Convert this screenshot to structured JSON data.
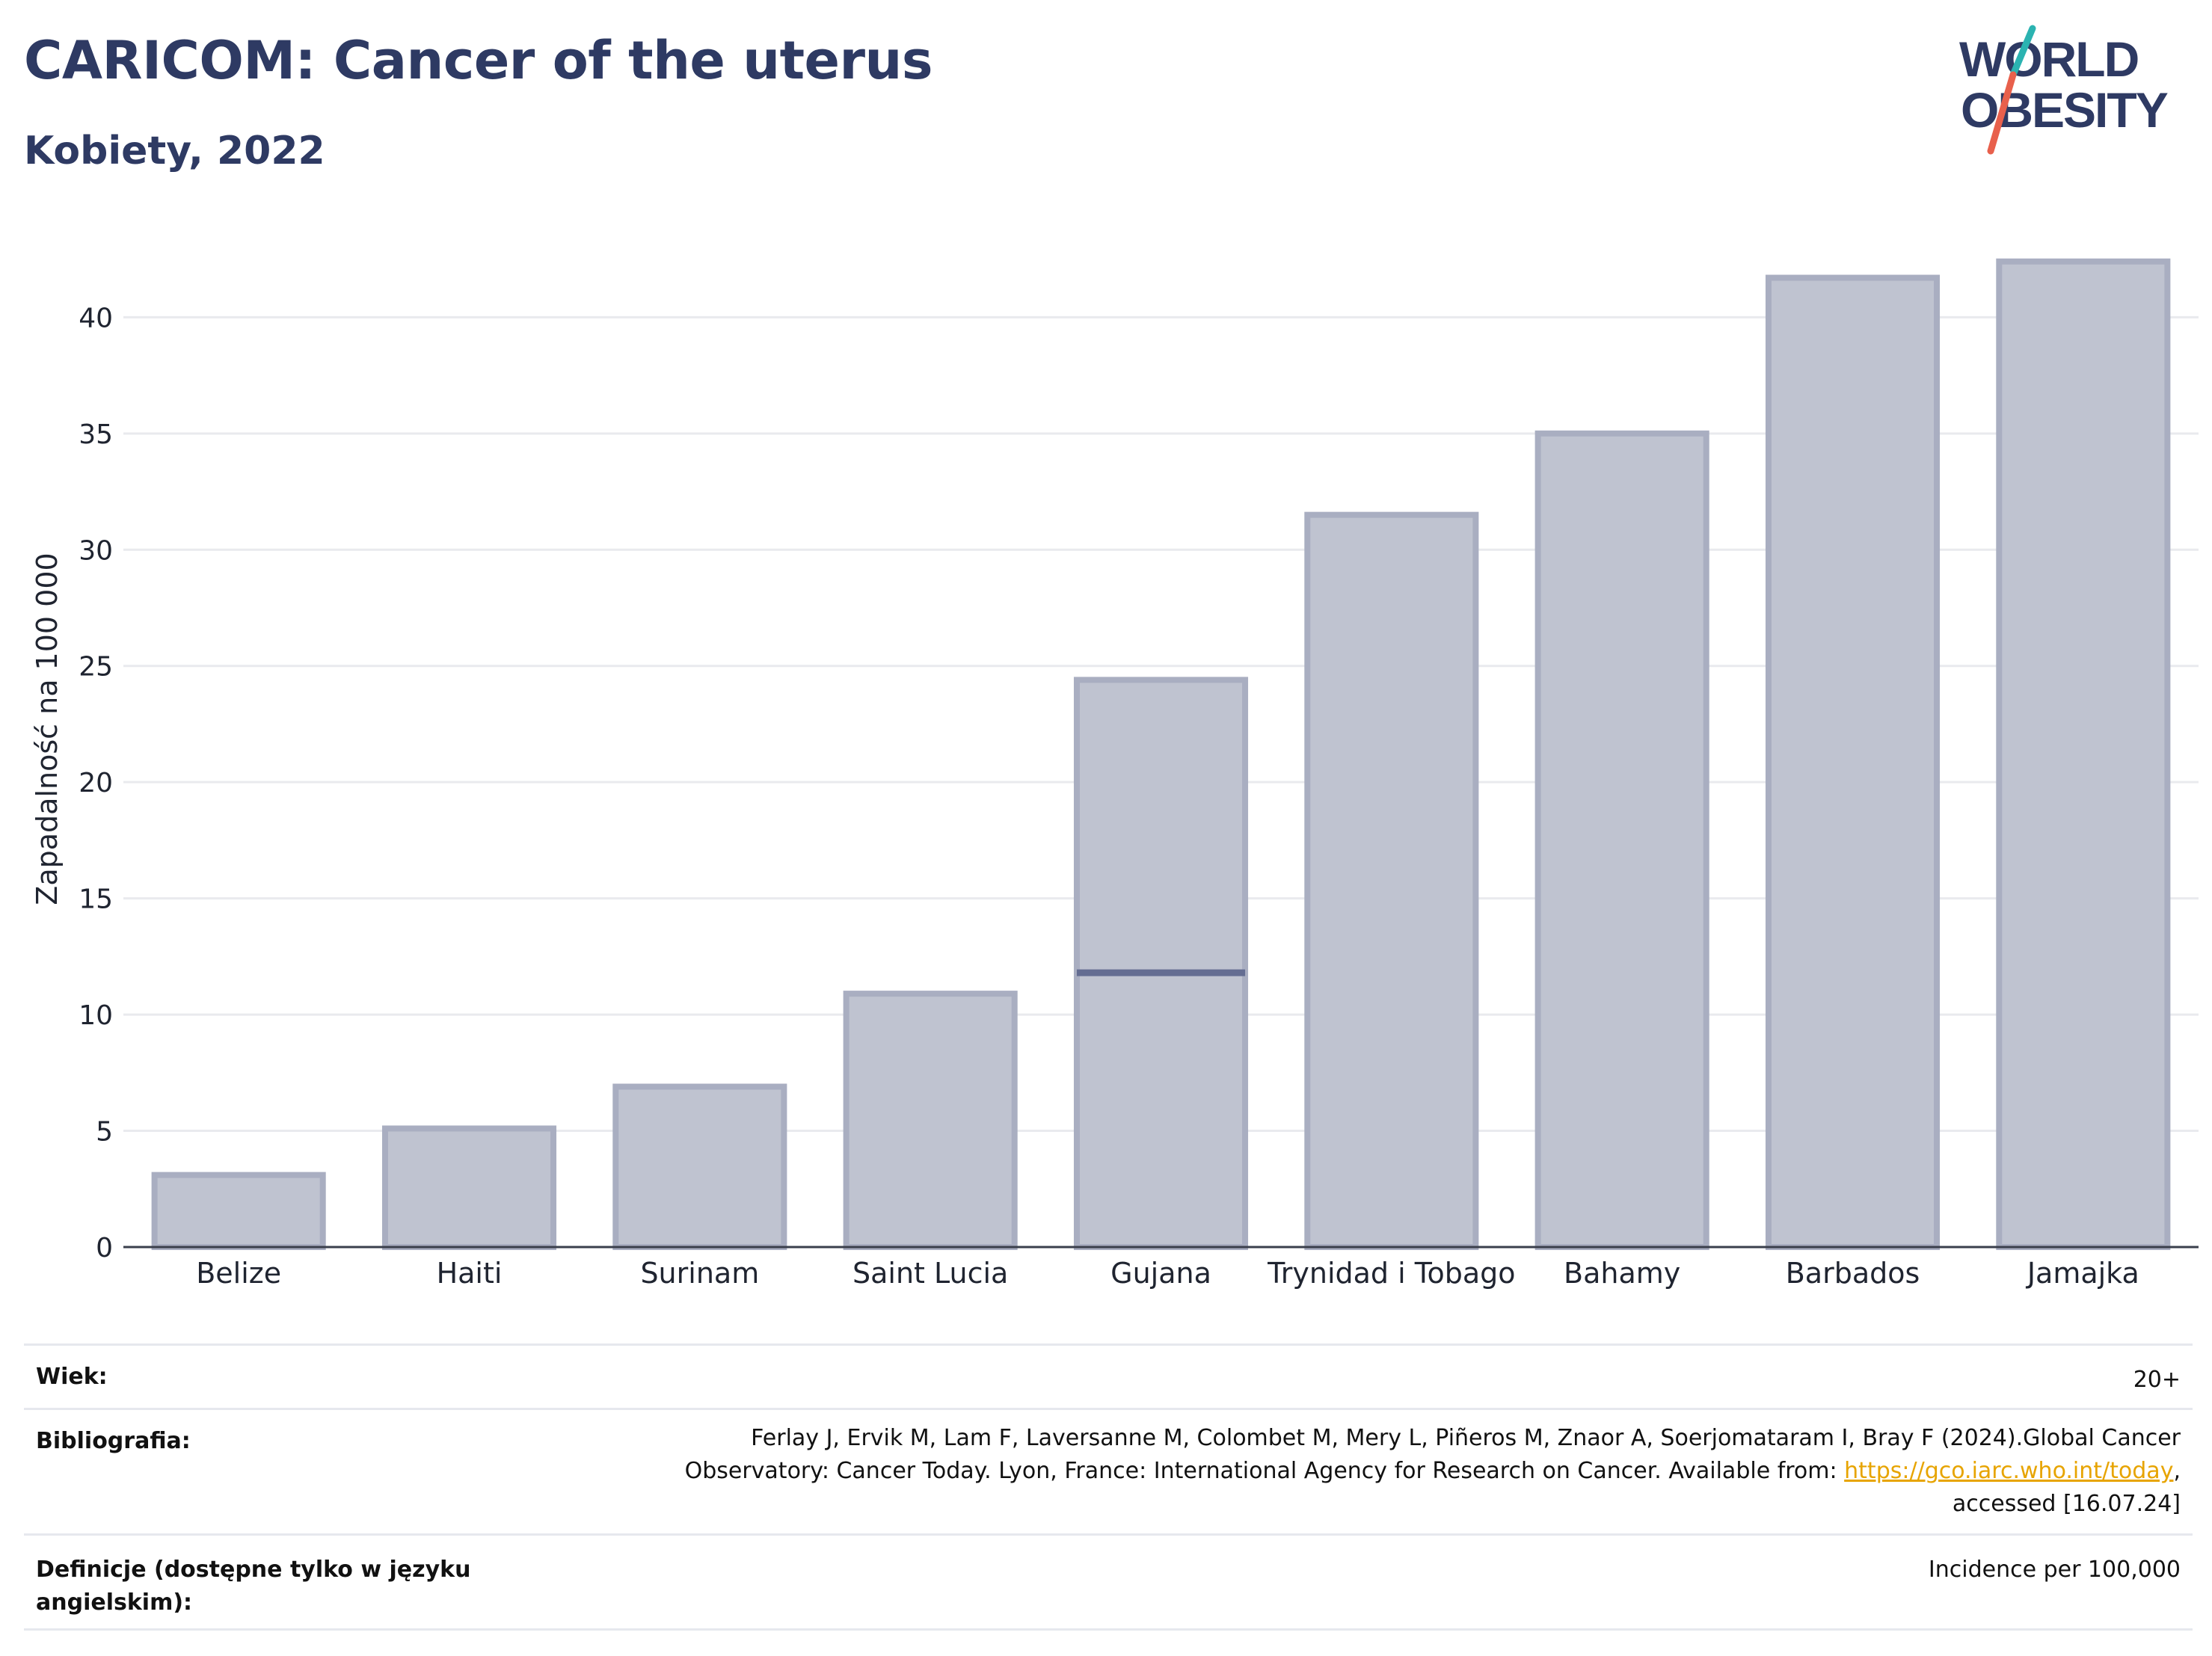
{
  "header": {
    "title": "CARICOM: Cancer of the uterus",
    "subtitle": "Kobiety, 2022"
  },
  "logo": {
    "line1": "WORLD",
    "line2": "OBESITY",
    "colors": {
      "text": "#2e3a63",
      "slash_teal": "#2bb3b1",
      "slash_coral": "#e8604c"
    }
  },
  "chart_data": {
    "type": "bar",
    "title": "CARICOM: Cancer of the uterus",
    "subtitle": "Kobiety, 2022",
    "categories": [
      "Belize",
      "Haiti",
      "Surinam",
      "Saint Lucia",
      "Gujana",
      "Trynidad i Tobago",
      "Bahamy",
      "Barbados",
      "Jamajka"
    ],
    "values": [
      3.1,
      5.1,
      6.9,
      10.9,
      24.4,
      31.5,
      35.0,
      41.7,
      42.4
    ],
    "reference_marker": {
      "category": "Gujana",
      "value": 11.8
    },
    "xlabel": "",
    "ylabel": "Zapadalność na 100 000",
    "ylim": [
      0,
      44
    ],
    "yticks": [
      0,
      5,
      10,
      15,
      20,
      25,
      30,
      35,
      40
    ],
    "grid": true,
    "colors": {
      "bar_fill": "#bfc3d0",
      "bar_edge": "#a9aec1",
      "marker": "#646d92",
      "grid": "#e9eaee",
      "axis": "#3a3f4c"
    }
  },
  "info": {
    "age_label": "Wiek:",
    "age_value": "20+",
    "bib_label": "Bibliografia:",
    "bib_line1": "Ferlay J, Ervik M, Lam F, Laversanne M, Colombet M, Mery L, Piñeros M, Znaor A, Soerjomataram I, Bray F (2024).Global Cancer",
    "bib_line2_pre": "Observatory: Cancer Today. Lyon, France: International Agency for Research on Cancer. Available from: ",
    "bib_link": "https://gco.iarc.who.int/today",
    "bib_line2_post": ",",
    "bib_line3": "accessed [16.07.24]",
    "def_label": "Definicje (dostępne tylko w języku angielskim):",
    "def_value": "Incidence per 100,000"
  }
}
